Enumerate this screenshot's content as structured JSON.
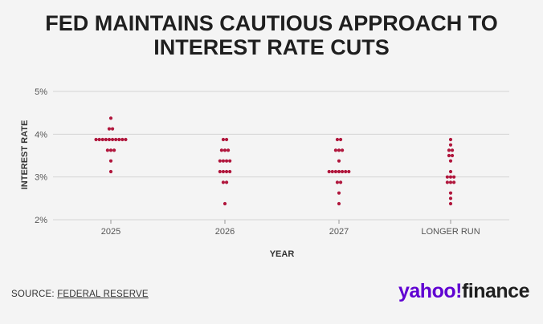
{
  "title": {
    "line1": "FED MAINTAINS CAUTIOUS APPROACH TO",
    "line2": "INTEREST RATE CUTS"
  },
  "chart_data": {
    "type": "scatter",
    "title": "FED MAINTAINS CAUTIOUS APPROACH TO INTEREST RATE CUTS",
    "xlabel": "YEAR",
    "ylabel": "INTEREST RATE",
    "categories": [
      "2025",
      "2026",
      "2027",
      "LONGER RUN"
    ],
    "ylim": [
      2,
      5
    ],
    "yticks": [
      2,
      3,
      4,
      5
    ],
    "ytick_labels": [
      "2%",
      "3%",
      "4%",
      "5%"
    ],
    "grid": true,
    "series": [
      {
        "name": "2025",
        "values": [
          4.375,
          4.125,
          4.125,
          3.875,
          3.875,
          3.875,
          3.875,
          3.875,
          3.875,
          3.875,
          3.875,
          3.875,
          3.875,
          3.625,
          3.625,
          3.625,
          3.375,
          3.125
        ]
      },
      {
        "name": "2026",
        "values": [
          3.875,
          3.875,
          3.625,
          3.625,
          3.625,
          3.375,
          3.375,
          3.375,
          3.375,
          3.125,
          3.125,
          3.125,
          3.125,
          2.875,
          2.875,
          2.375
        ]
      },
      {
        "name": "2027",
        "values": [
          3.875,
          3.875,
          3.625,
          3.625,
          3.625,
          3.375,
          3.125,
          3.125,
          3.125,
          3.125,
          3.125,
          3.125,
          3.125,
          2.875,
          2.875,
          2.625,
          2.375
        ]
      },
      {
        "name": "LONGER RUN",
        "values": [
          3.875,
          3.75,
          3.625,
          3.625,
          3.5,
          3.5,
          3.375,
          3.125,
          3.0,
          3.0,
          3.0,
          2.875,
          2.875,
          2.875,
          2.625,
          2.5,
          2.375
        ]
      }
    ],
    "dot_color": "#b0163c",
    "grid_color": "#d4d4d4"
  },
  "footer": {
    "source_label": "SOURCE:",
    "source_link": "FEDERAL RESERVE",
    "logo_part1": "yahoo!",
    "logo_part2": "finance",
    "logo_color": "#6001d2"
  }
}
